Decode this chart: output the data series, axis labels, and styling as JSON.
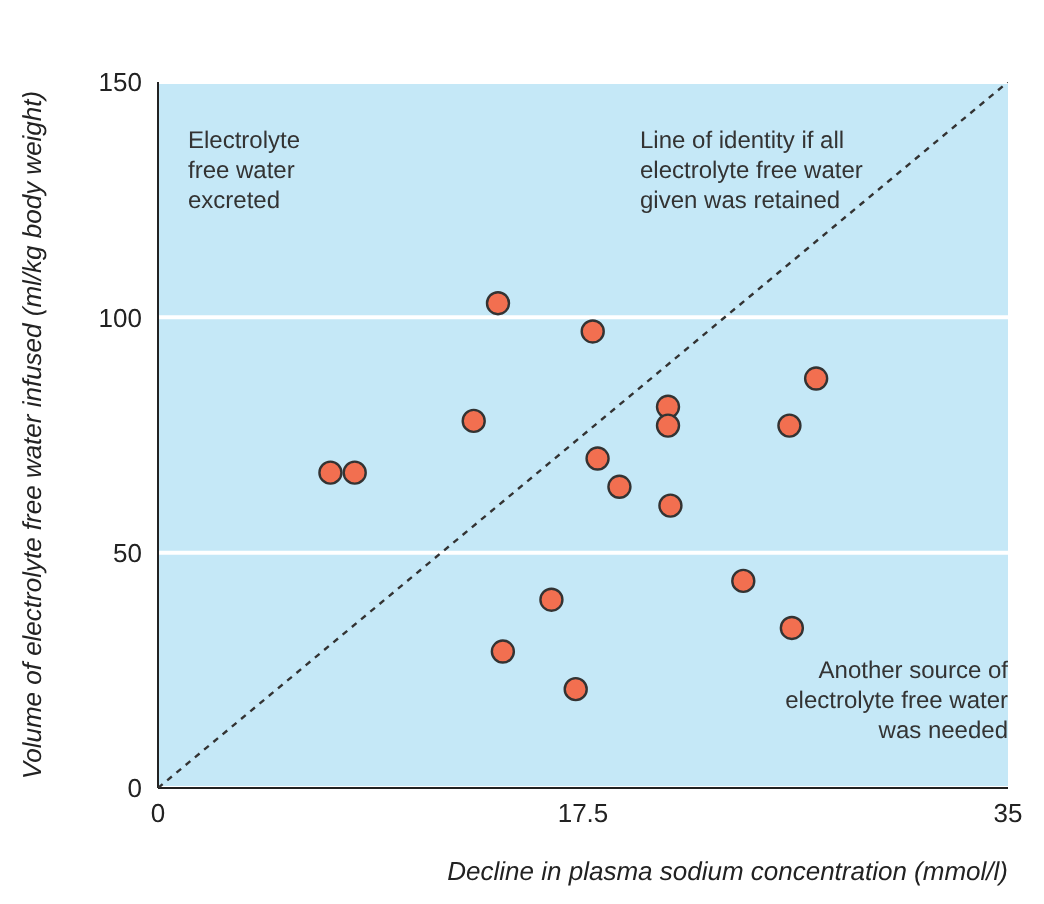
{
  "chart_data": {
    "type": "scatter",
    "xlabel": "Decline in plasma sodium concentration (mmol/l)",
    "ylabel": "Volume of electrolyte free water infused (ml/kg body weight)",
    "xlim": [
      0,
      35
    ],
    "xticks": [
      0,
      17.5,
      35
    ],
    "ylim": [
      0,
      150
    ],
    "yticks": [
      0,
      50,
      100,
      150
    ],
    "grid": "y",
    "marker": "circle",
    "series": [
      {
        "color": "#f26f50",
        "x": [
          7.1,
          8.1,
          13.0,
          14.0,
          17.9,
          18.1,
          19.0,
          21.0,
          21.0,
          21.1,
          24.1,
          27.1,
          26.0,
          26.1,
          16.2,
          14.2,
          17.2
        ],
        "values": [
          67,
          67,
          78,
          103,
          97,
          70,
          64,
          81,
          77,
          60,
          44,
          87,
          77,
          34,
          40,
          29,
          21
        ]
      },
      {
        "type": "line",
        "color": "#333333",
        "line_style": "dashed",
        "marker": "none",
        "x": [
          0,
          35
        ],
        "values": [
          0,
          150
        ]
      }
    ],
    "annotations": [
      "Electrolyte free water excreted",
      "Line of identity if all electrolyte free water given was retained",
      "Another source of electrolyte free water was needed"
    ]
  }
}
